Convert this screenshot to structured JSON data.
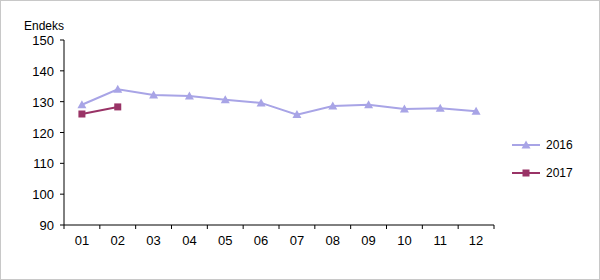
{
  "chart_data": {
    "type": "line",
    "y_label": "Endeks",
    "categories": [
      "01",
      "02",
      "03",
      "04",
      "05",
      "06",
      "07",
      "08",
      "09",
      "10",
      "11",
      "12"
    ],
    "series": [
      {
        "name": "2016",
        "color": "#a8a4e6",
        "marker": "triangle",
        "values": [
          129,
          134,
          132.2,
          131.8,
          130.6,
          129.6,
          125.8,
          128.6,
          129,
          127.6,
          127.9,
          126.9
        ]
      },
      {
        "name": "2017",
        "color": "#993366",
        "marker": "square",
        "values": [
          126,
          128.3,
          null,
          null,
          null,
          null,
          null,
          null,
          null,
          null,
          null,
          null
        ]
      }
    ],
    "ylim": [
      90,
      150
    ],
    "yticks": [
      90,
      100,
      110,
      120,
      130,
      140,
      150
    ],
    "grid": false,
    "legend": "right"
  }
}
